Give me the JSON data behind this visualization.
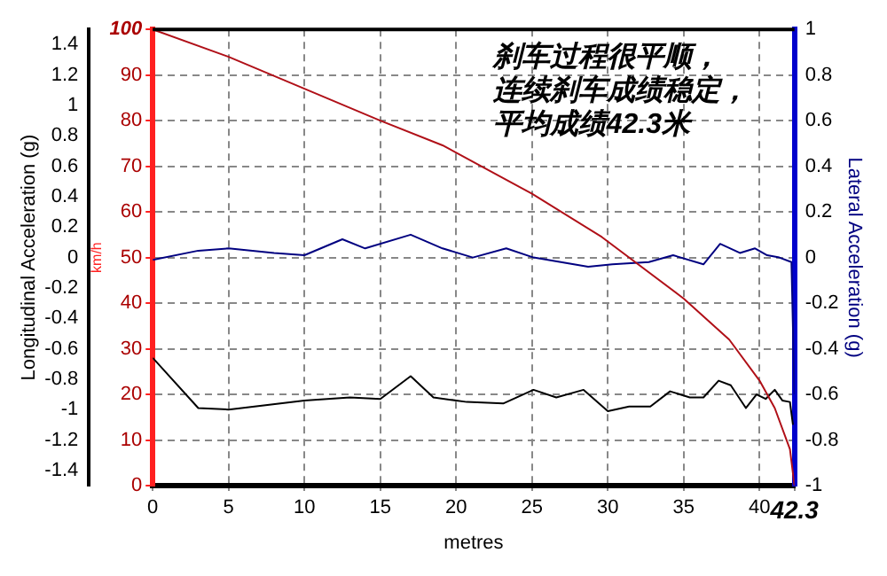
{
  "chart_data": {
    "type": "line",
    "xlabel": "metres",
    "ylabel": "Longitudinal Acceleration (g)",
    "y2label": "km/h",
    "y3label": "Lateral Acceleration (g)",
    "annotations": [
      "刹车过程很平顺，",
      "连续刹车成绩稳定，",
      "平均成绩42.3米"
    ],
    "xlim": [
      0,
      42.3
    ],
    "xticks": [
      0,
      5,
      10,
      15,
      20,
      25,
      30,
      35,
      40,
      42.3
    ],
    "ylim": [
      -1.5,
      1.5
    ],
    "yticks": [
      -1.4,
      -1.2,
      -1,
      -0.8,
      -0.6,
      -0.4,
      -0.2,
      0,
      0.2,
      0.4,
      0.6,
      0.8,
      1,
      1.2,
      1.4
    ],
    "y2lim": [
      0,
      100
    ],
    "y2ticks": [
      0,
      10,
      20,
      30,
      40,
      50,
      60,
      70,
      80,
      90,
      100
    ],
    "y3lim": [
      -1,
      1
    ],
    "y3ticks": [
      -1,
      -0.8,
      -0.6,
      -0.4,
      -0.2,
      0,
      0.2,
      0.4,
      0.6,
      0.8,
      1
    ],
    "grid": true,
    "marker": "none",
    "line_style": "solid",
    "legend": false,
    "series": [
      {
        "color": "#b01018",
        "axis": "y2",
        "x": [
          0,
          5,
          10,
          15,
          19.1,
          25,
          29.6,
          35,
          38,
          40,
          41,
          42,
          42.3
        ],
        "values": [
          100,
          94,
          87,
          80,
          74.6,
          64,
          54.5,
          41,
          32,
          23,
          17,
          8,
          0
        ]
      },
      {
        "color": "#000000",
        "axis": "y",
        "x": [
          0,
          3,
          5,
          10,
          13,
          15,
          17,
          18.5,
          20.7,
          23.1,
          25.1,
          26.6,
          28.4,
          30,
          31.4,
          32.8,
          34.1,
          35.4,
          36.3,
          37.3,
          38.1,
          39.1,
          39.8,
          40.4,
          41,
          41.5,
          42,
          42.2
        ],
        "values": [
          -0.66,
          -0.99,
          -1,
          -0.94,
          -0.92,
          -0.93,
          -0.78,
          -0.92,
          -0.95,
          -0.96,
          -0.87,
          -0.92,
          -0.87,
          -1.01,
          -0.98,
          -0.98,
          -0.88,
          -0.92,
          -0.92,
          -0.81,
          -0.84,
          -0.99,
          -0.9,
          -0.93,
          -0.87,
          -0.94,
          -0.95,
          -1.1
        ]
      },
      {
        "color": "#000080",
        "axis": "y3",
        "x": [
          0,
          3,
          5,
          8,
          10,
          12.5,
          14,
          17,
          19.1,
          21.1,
          23.3,
          25.1,
          28.7,
          30.3,
          32.7,
          34.3,
          36.3,
          37.4,
          38.7,
          39.7,
          40.5,
          41.3,
          42.1,
          42.3
        ],
        "values": [
          -0.01,
          0.03,
          0.04,
          0.02,
          0.01,
          0.08,
          0.04,
          0.1,
          0.04,
          0,
          0.04,
          0,
          -0.04,
          -0.03,
          -0.02,
          0.01,
          -0.03,
          0.06,
          0.02,
          0.04,
          0.01,
          0,
          -0.02,
          -0.6
        ]
      }
    ]
  }
}
